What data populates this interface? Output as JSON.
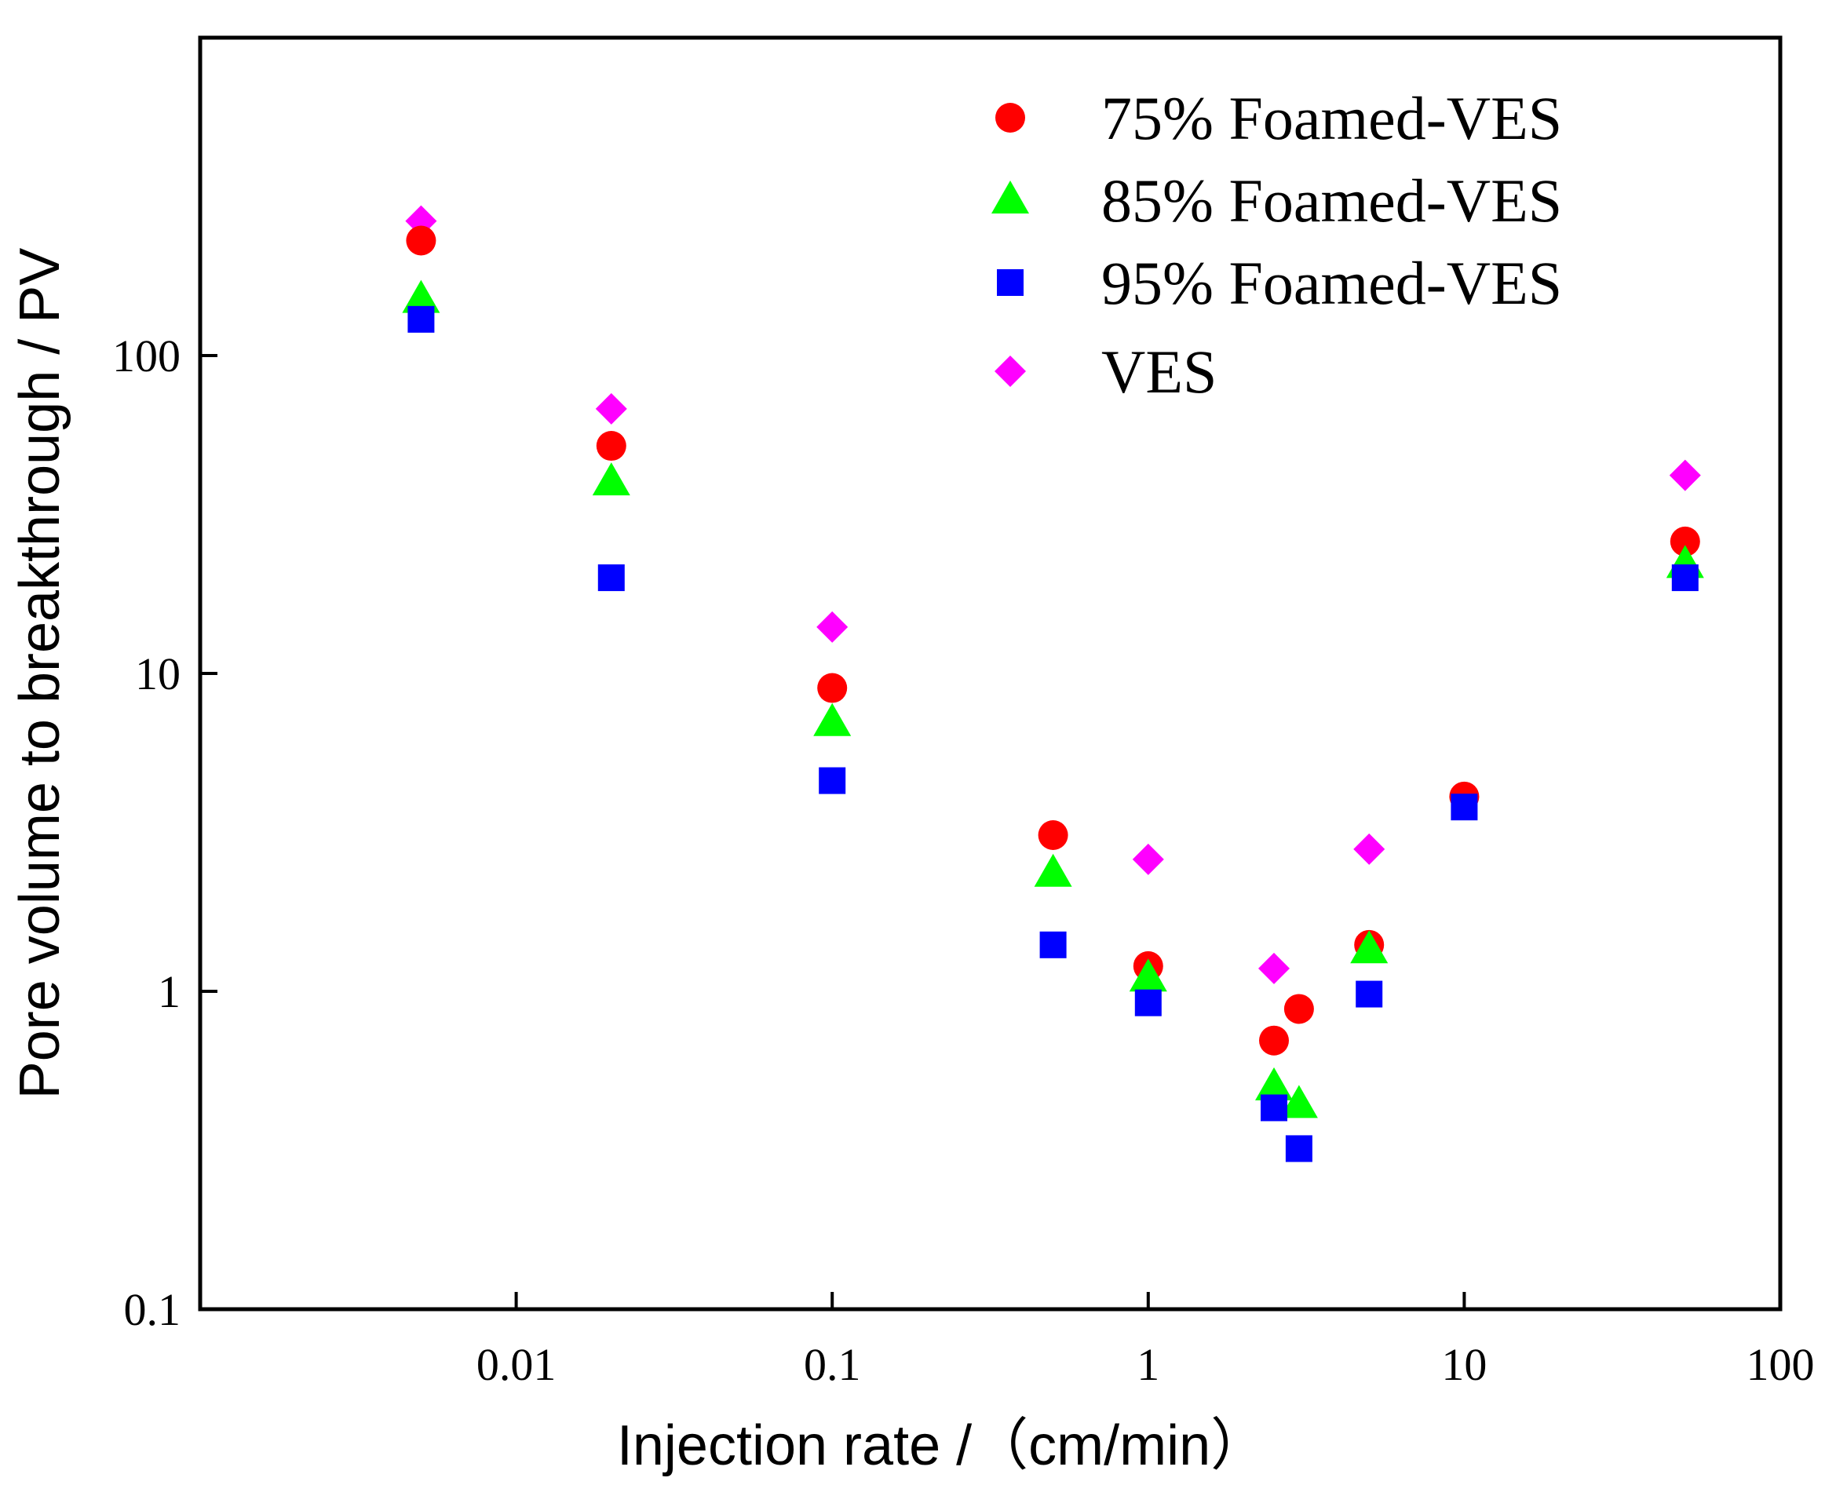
{
  "chart_data": {
    "type": "scatter",
    "title": "",
    "xlabel": "Injection rate /（cm/min）",
    "ylabel": "Pore volume to breakthrough / PV",
    "xscale": "log",
    "yscale": "log",
    "xlim": [
      0.001,
      100
    ],
    "ylim": [
      0.1,
      1000
    ],
    "x_ticks": [
      {
        "value": 0.01,
        "label": "0.01"
      },
      {
        "value": 0.1,
        "label": "0.1"
      },
      {
        "value": 1,
        "label": "1"
      },
      {
        "value": 10,
        "label": "10"
      },
      {
        "value": 100,
        "label": "100"
      }
    ],
    "y_ticks": [
      {
        "value": 0.1,
        "label": "0.1"
      },
      {
        "value": 1,
        "label": "1"
      },
      {
        "value": 10,
        "label": "10"
      },
      {
        "value": 100,
        "label": "100"
      }
    ],
    "legend_position": "top-right",
    "series": [
      {
        "name": "75% Foamed-VES",
        "marker": "circle",
        "color": "#ff0000",
        "points": [
          {
            "x": 0.005,
            "y": 230
          },
          {
            "x": 0.02,
            "y": 52
          },
          {
            "x": 0.1,
            "y": 9
          },
          {
            "x": 0.5,
            "y": 3.1
          },
          {
            "x": 1,
            "y": 1.2
          },
          {
            "x": 2.5,
            "y": 0.7
          },
          {
            "x": 3,
            "y": 0.88
          },
          {
            "x": 5,
            "y": 1.4
          },
          {
            "x": 10,
            "y": 4.1
          },
          {
            "x": 50,
            "y": 26
          }
        ]
      },
      {
        "name": "85% Foamed-VES",
        "marker": "triangle",
        "color": "#00ff00",
        "points": [
          {
            "x": 0.005,
            "y": 150
          },
          {
            "x": 0.02,
            "y": 40
          },
          {
            "x": 0.1,
            "y": 7
          },
          {
            "x": 0.5,
            "y": 2.35
          },
          {
            "x": 1,
            "y": 1.1
          },
          {
            "x": 2.5,
            "y": 0.5
          },
          {
            "x": 3,
            "y": 0.44
          },
          {
            "x": 5,
            "y": 1.35
          },
          {
            "x": 50,
            "y": 22
          }
        ]
      },
      {
        "name": "95% Foamed-VES",
        "marker": "square",
        "color": "#0000ff",
        "points": [
          {
            "x": 0.005,
            "y": 130
          },
          {
            "x": 0.02,
            "y": 20
          },
          {
            "x": 0.1,
            "y": 4.6
          },
          {
            "x": 0.5,
            "y": 1.4
          },
          {
            "x": 1,
            "y": 0.92
          },
          {
            "x": 2.5,
            "y": 0.43
          },
          {
            "x": 3,
            "y": 0.32
          },
          {
            "x": 5,
            "y": 0.98
          },
          {
            "x": 10,
            "y": 3.8
          },
          {
            "x": 50,
            "y": 20
          }
        ]
      },
      {
        "name": "VES",
        "marker": "diamond",
        "color": "#ff00ff",
        "points": [
          {
            "x": 0.005,
            "y": 265
          },
          {
            "x": 0.02,
            "y": 68
          },
          {
            "x": 0.1,
            "y": 14
          },
          {
            "x": 1,
            "y": 2.6
          },
          {
            "x": 2.5,
            "y": 1.18
          },
          {
            "x": 5,
            "y": 2.8
          },
          {
            "x": 50,
            "y": 42
          }
        ]
      }
    ]
  }
}
